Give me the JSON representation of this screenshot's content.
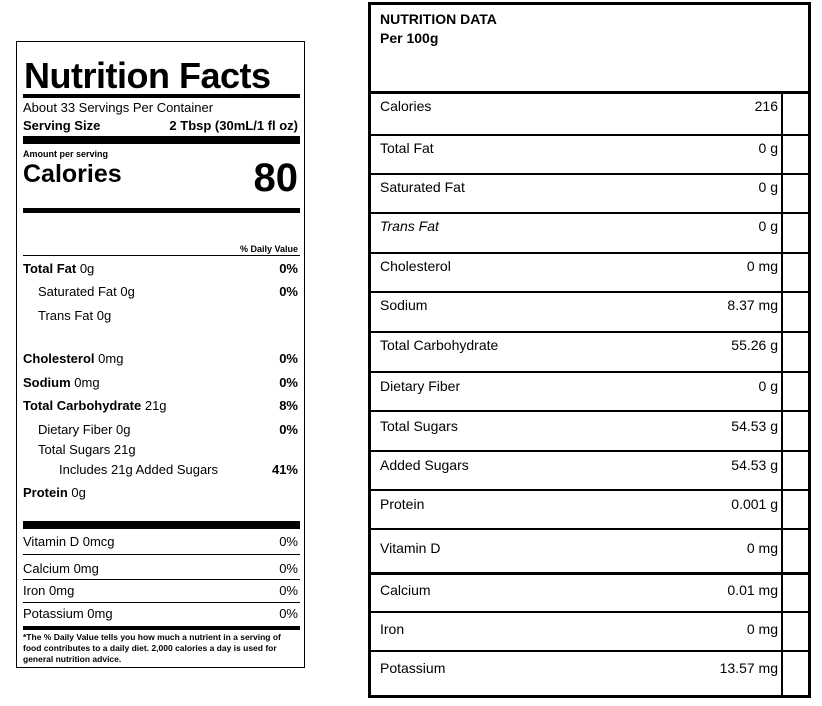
{
  "nutrition_facts": {
    "title": "Nutrition Facts",
    "servings_per_container": "About 33 Servings Per Container",
    "serving_size_label": "Serving Size",
    "serving_size_value": "2 Tbsp (30mL/1 fl oz)",
    "amount_per_serving": "Amount per serving",
    "calories_label": "Calories",
    "calories_value": "80",
    "dv_header": "% Daily Value",
    "nutrients": {
      "total_fat": {
        "label": "Total Fat",
        "amount": "0g",
        "dv": "0%"
      },
      "saturated_fat": {
        "label": "Saturated Fat",
        "amount": "0g",
        "dv": "0%"
      },
      "trans_fat": {
        "label": "Trans Fat",
        "amount": "0g"
      },
      "cholesterol": {
        "label": "Cholesterol",
        "amount": "0mg",
        "dv": "0%"
      },
      "sodium": {
        "label": "Sodium",
        "amount": "0mg",
        "dv": "0%"
      },
      "total_carbohydrate": {
        "label": "Total Carbohydrate",
        "amount": "21g",
        "dv": "8%"
      },
      "dietary_fiber": {
        "label": "Dietary Fiber",
        "amount": "0g",
        "dv": "0%"
      },
      "total_sugars": {
        "label": "Total Sugars",
        "amount": "21g"
      },
      "added_sugars": {
        "label": "Includes 21g Added Sugars",
        "dv": "41%"
      },
      "protein": {
        "label": "Protein",
        "amount": "0g"
      }
    },
    "vitamins": {
      "vitamin_d": {
        "label": "Vitamin D 0mcg",
        "dv": "0%"
      },
      "calcium": {
        "label": "Calcium 0mg",
        "dv": "0%"
      },
      "iron": {
        "label": "Iron 0mg",
        "dv": "0%"
      },
      "potassium": {
        "label": "Potassium 0mg",
        "dv": "0%"
      }
    },
    "footnote": "*The % Daily Value tells you how much a nutrient in a serving of food contributes to a daily diet.  2,000 calories a day is used for general nutrition advice."
  },
  "nutrition_data": {
    "title": "NUTRITION DATA",
    "subtitle": "Per 100g",
    "rows": [
      {
        "label": "Calories",
        "value": "216"
      },
      {
        "label": "Total Fat",
        "value": "0 g"
      },
      {
        "label": "Saturated Fat",
        "value": "0 g"
      },
      {
        "label": "Trans Fat",
        "value": "0 g"
      },
      {
        "label": "Cholesterol",
        "value": "0 mg"
      },
      {
        "label": "Sodium",
        "value": "8.37 mg"
      },
      {
        "label": "Total Carbohydrate",
        "value": "55.26 g"
      },
      {
        "label": "Dietary Fiber",
        "value": "0 g"
      },
      {
        "label": "Total Sugars",
        "value": "54.53 g"
      },
      {
        "label": "Added Sugars",
        "value": "54.53 g"
      },
      {
        "label": "Protein",
        "value": "0.001 g"
      },
      {
        "label": "Vitamin D",
        "value": "0 mg"
      },
      {
        "label": "Calcium",
        "value": "0.01 mg"
      },
      {
        "label": "Iron",
        "value": "0 mg"
      },
      {
        "label": "Potassium",
        "value": "13.57 mg"
      }
    ]
  }
}
